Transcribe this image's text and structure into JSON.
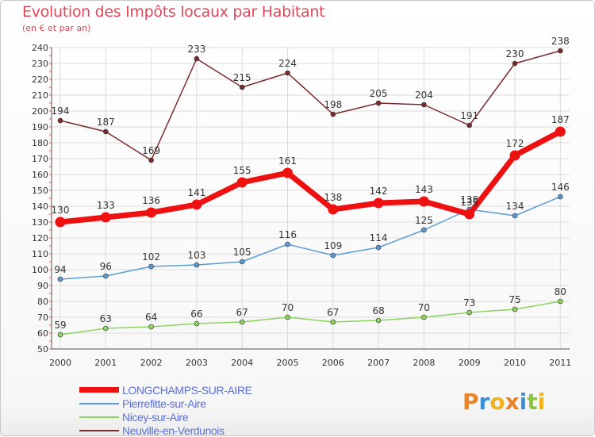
{
  "title": "Evolution des Impôts locaux par Habitant",
  "subtitle": "(en € et par an)",
  "logo": {
    "text": "Proxiti",
    "letters": [
      {
        "ch": "P",
        "color": "#e8852a"
      },
      {
        "ch": "r",
        "color": "#3b8fd6"
      },
      {
        "ch": "o",
        "color": "#f1b321"
      },
      {
        "ch": "x",
        "color": "#e8852a"
      },
      {
        "ch": "i",
        "color": "#3b8fd6"
      },
      {
        "ch": "t",
        "color": "#8cc63e"
      },
      {
        "ch": "i",
        "color": "#f1b321"
      }
    ]
  },
  "chart_data": {
    "type": "line",
    "title": "Evolution des Impôts locaux par Habitant",
    "subtitle": "(en € et par an)",
    "xlabel": "",
    "ylabel": "",
    "categories": [
      "2000",
      "2001",
      "2002",
      "2003",
      "2004",
      "2005",
      "2006",
      "2007",
      "2008",
      "2009",
      "2010",
      "2011"
    ],
    "ylim": [
      50,
      240
    ],
    "yticks": [
      50,
      60,
      70,
      80,
      90,
      100,
      110,
      120,
      130,
      140,
      150,
      160,
      170,
      180,
      190,
      200,
      210,
      220,
      230,
      240
    ],
    "grid": true,
    "legend_position": "bottom-left",
    "series": [
      {
        "name": "LONGCHAMPS-SUR-AIRE",
        "color": "#ee1111",
        "emphasis": true,
        "values": [
          130,
          133,
          136,
          141,
          155,
          161,
          138,
          142,
          143,
          135,
          172,
          187
        ],
        "labels": [
          "130",
          "133",
          "136",
          "141",
          "155",
          "161",
          "138",
          "142",
          "143",
          "135",
          "172",
          "187"
        ]
      },
      {
        "name": "Pierrefitte-sur-Aire",
        "color": "#5b9bd5",
        "values": [
          94,
          96,
          102,
          103,
          105,
          116,
          109,
          114,
          125,
          138,
          134,
          146
        ],
        "labels": [
          "94",
          "96",
          "102",
          "103",
          "105",
          "116",
          "109",
          "114",
          "125",
          "138",
          "134",
          "146"
        ]
      },
      {
        "name": "Nicey-sur-Aire",
        "color": "#8ed35f",
        "values": [
          59,
          63,
          64,
          66,
          67,
          70,
          67,
          68,
          70,
          73,
          75,
          80
        ],
        "labels": [
          "59",
          "63",
          "64",
          "66",
          "67",
          "70",
          "67",
          "68",
          "70",
          "73",
          "75",
          "80"
        ]
      },
      {
        "name": "Neuville-en-Verdunois",
        "color": "#7a2b2b",
        "values": [
          194,
          187,
          169,
          233,
          215,
          224,
          198,
          205,
          204,
          191,
          230,
          238
        ],
        "labels": [
          "194",
          "187",
          "169",
          "233",
          "215",
          "224",
          "198",
          "205",
          "204",
          "191",
          "230",
          "238"
        ]
      }
    ]
  }
}
